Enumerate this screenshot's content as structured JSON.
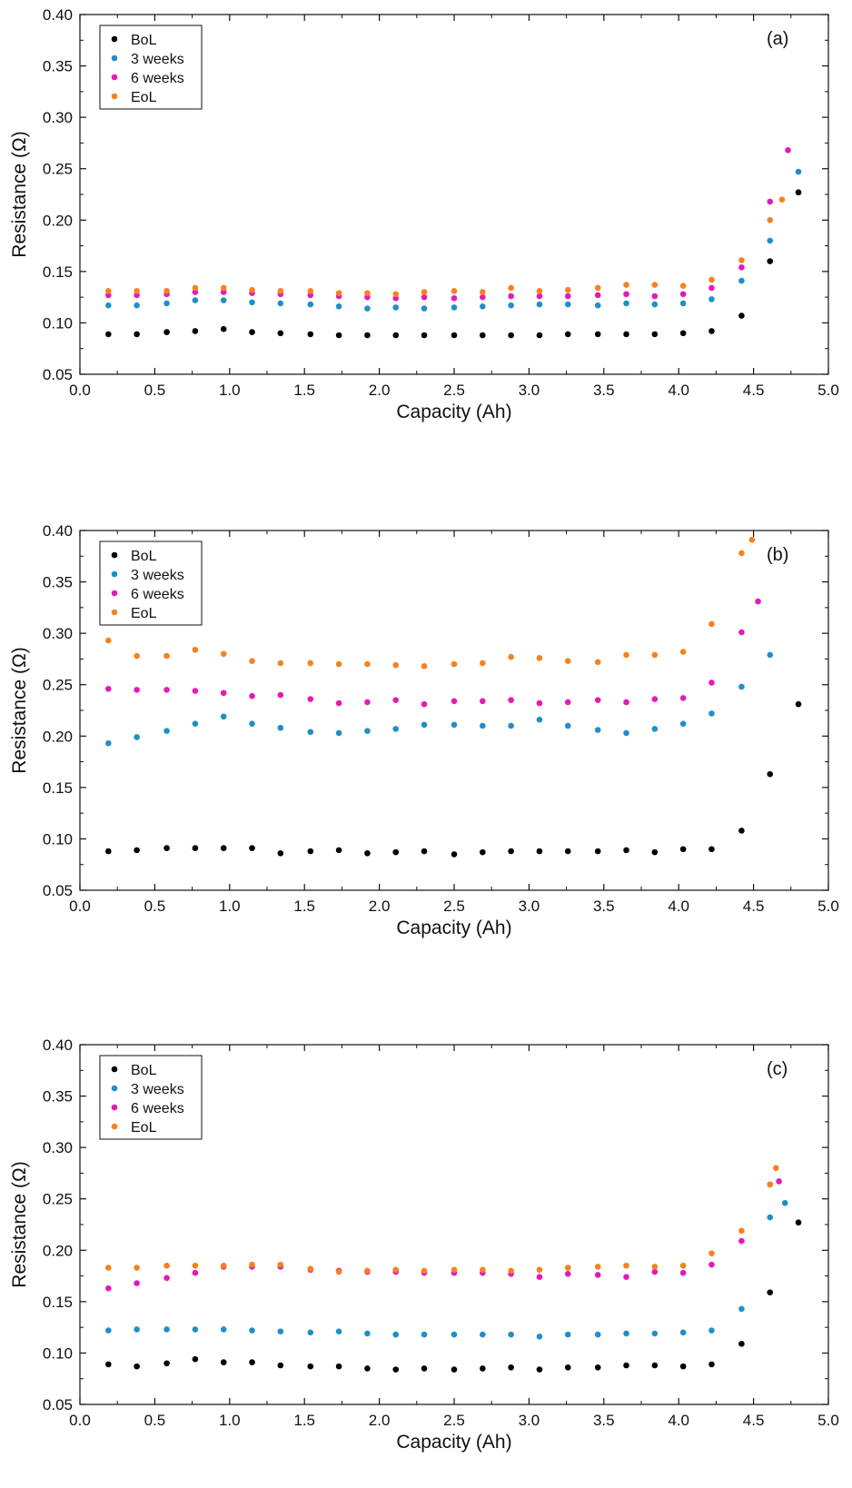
{
  "chart_data": [
    {
      "type": "scatter",
      "panel_label": "(a)",
      "xlabel": "Capacity (Ah)",
      "ylabel": "Resistance (Ω)",
      "xlim": [
        0,
        5
      ],
      "ylim": [
        0.05,
        0.4
      ],
      "xticks": [
        "0.0",
        "0.5",
        "1.0",
        "1.5",
        "2.0",
        "2.5",
        "3.0",
        "3.5",
        "4.0",
        "4.5",
        "5.0"
      ],
      "yticks": [
        "0.05",
        "0.10",
        "0.15",
        "0.20",
        "0.25",
        "0.30",
        "0.35",
        "0.40"
      ],
      "legend_position": "top-left",
      "grid": false,
      "series": [
        {
          "name": "BoL",
          "color": "#000000",
          "x": [
            0.19,
            0.38,
            0.58,
            0.77,
            0.96,
            1.15,
            1.34,
            1.54,
            1.73,
            1.92,
            2.11,
            2.3,
            2.5,
            2.69,
            2.88,
            3.07,
            3.26,
            3.46,
            3.65,
            3.84,
            4.03,
            4.22,
            4.42,
            4.61,
            4.8
          ],
          "y": [
            0.089,
            0.089,
            0.091,
            0.092,
            0.094,
            0.091,
            0.09,
            0.089,
            0.088,
            0.088,
            0.088,
            0.088,
            0.088,
            0.088,
            0.088,
            0.088,
            0.089,
            0.089,
            0.089,
            0.089,
            0.09,
            0.092,
            0.107,
            0.16,
            0.227
          ]
        },
        {
          "name": "3 weeks",
          "color": "#1f8fc9",
          "x": [
            0.19,
            0.38,
            0.58,
            0.77,
            0.96,
            1.15,
            1.34,
            1.54,
            1.73,
            1.92,
            2.11,
            2.3,
            2.5,
            2.69,
            2.88,
            3.07,
            3.26,
            3.46,
            3.65,
            3.84,
            4.03,
            4.22,
            4.42,
            4.61,
            4.8
          ],
          "y": [
            0.117,
            0.117,
            0.119,
            0.122,
            0.122,
            0.12,
            0.119,
            0.118,
            0.116,
            0.114,
            0.115,
            0.114,
            0.115,
            0.116,
            0.117,
            0.118,
            0.118,
            0.117,
            0.119,
            0.118,
            0.119,
            0.123,
            0.141,
            0.18,
            0.247
          ]
        },
        {
          "name": "6 weeks",
          "color": "#e619b8",
          "x": [
            0.19,
            0.38,
            0.58,
            0.77,
            0.96,
            1.15,
            1.34,
            1.54,
            1.73,
            1.92,
            2.11,
            2.3,
            2.5,
            2.69,
            2.88,
            3.07,
            3.26,
            3.46,
            3.65,
            3.84,
            4.03,
            4.22,
            4.42,
            4.61,
            4.73
          ],
          "y": [
            0.127,
            0.127,
            0.128,
            0.13,
            0.13,
            0.129,
            0.128,
            0.127,
            0.126,
            0.125,
            0.124,
            0.125,
            0.124,
            0.125,
            0.126,
            0.126,
            0.126,
            0.127,
            0.128,
            0.126,
            0.128,
            0.134,
            0.154,
            0.218,
            0.268
          ]
        },
        {
          "name": "EoL",
          "color": "#f5821f",
          "x": [
            0.19,
            0.38,
            0.58,
            0.77,
            0.96,
            1.15,
            1.34,
            1.54,
            1.73,
            1.92,
            2.11,
            2.3,
            2.5,
            2.69,
            2.88,
            3.07,
            3.26,
            3.46,
            3.65,
            3.84,
            4.03,
            4.22,
            4.42,
            4.61,
            4.69
          ],
          "y": [
            0.131,
            0.131,
            0.131,
            0.134,
            0.134,
            0.132,
            0.131,
            0.131,
            0.129,
            0.129,
            0.128,
            0.13,
            0.131,
            0.13,
            0.134,
            0.131,
            0.132,
            0.134,
            0.137,
            0.137,
            0.136,
            0.142,
            0.161,
            0.2,
            0.22
          ]
        }
      ]
    },
    {
      "type": "scatter",
      "panel_label": "(b)",
      "xlabel": "Capacity (Ah)",
      "ylabel": "Resistance (Ω)",
      "xlim": [
        0,
        5
      ],
      "ylim": [
        0.05,
        0.4
      ],
      "xticks": [
        "0.0",
        "0.5",
        "1.0",
        "1.5",
        "2.0",
        "2.5",
        "3.0",
        "3.5",
        "4.0",
        "4.5",
        "5.0"
      ],
      "yticks": [
        "0.05",
        "0.10",
        "0.15",
        "0.20",
        "0.25",
        "0.30",
        "0.35",
        "0.40"
      ],
      "legend_position": "top-left",
      "grid": false,
      "series": [
        {
          "name": "BoL",
          "color": "#000000",
          "x": [
            0.19,
            0.38,
            0.58,
            0.77,
            0.96,
            1.15,
            1.34,
            1.54,
            1.73,
            1.92,
            2.11,
            2.3,
            2.5,
            2.69,
            2.88,
            3.07,
            3.26,
            3.46,
            3.65,
            3.84,
            4.03,
            4.22,
            4.42,
            4.61,
            4.8
          ],
          "y": [
            0.088,
            0.089,
            0.091,
            0.091,
            0.091,
            0.091,
            0.086,
            0.088,
            0.089,
            0.086,
            0.087,
            0.088,
            0.085,
            0.087,
            0.088,
            0.088,
            0.088,
            0.088,
            0.089,
            0.087,
            0.09,
            0.09,
            0.108,
            0.163,
            0.231
          ]
        },
        {
          "name": "3 weeks",
          "color": "#1f8fc9",
          "x": [
            0.19,
            0.38,
            0.58,
            0.77,
            0.96,
            1.15,
            1.34,
            1.54,
            1.73,
            1.92,
            2.11,
            2.3,
            2.5,
            2.69,
            2.88,
            3.07,
            3.26,
            3.46,
            3.65,
            3.84,
            4.03,
            4.22,
            4.42,
            4.61
          ],
          "y": [
            0.193,
            0.199,
            0.205,
            0.212,
            0.219,
            0.212,
            0.208,
            0.204,
            0.203,
            0.205,
            0.207,
            0.211,
            0.211,
            0.21,
            0.21,
            0.216,
            0.21,
            0.206,
            0.203,
            0.207,
            0.212,
            0.222,
            0.248,
            0.279
          ]
        },
        {
          "name": "6 weeks",
          "color": "#e619b8",
          "x": [
            0.19,
            0.38,
            0.58,
            0.77,
            0.96,
            1.15,
            1.34,
            1.54,
            1.73,
            1.92,
            2.11,
            2.3,
            2.5,
            2.69,
            2.88,
            3.07,
            3.26,
            3.46,
            3.65,
            3.84,
            4.03,
            4.22,
            4.42,
            4.53
          ],
          "y": [
            0.246,
            0.245,
            0.245,
            0.244,
            0.242,
            0.239,
            0.24,
            0.236,
            0.232,
            0.233,
            0.235,
            0.231,
            0.234,
            0.234,
            0.235,
            0.232,
            0.233,
            0.235,
            0.233,
            0.236,
            0.237,
            0.252,
            0.301,
            0.331
          ]
        },
        {
          "name": "EoL",
          "color": "#f5821f",
          "x": [
            0.19,
            0.38,
            0.58,
            0.77,
            0.96,
            1.15,
            1.34,
            1.54,
            1.73,
            1.92,
            2.11,
            2.3,
            2.5,
            2.69,
            2.88,
            3.07,
            3.26,
            3.46,
            3.65,
            3.84,
            4.03,
            4.22,
            4.42,
            4.49
          ],
          "y": [
            0.293,
            0.278,
            0.278,
            0.284,
            0.28,
            0.273,
            0.271,
            0.271,
            0.27,
            0.27,
            0.269,
            0.268,
            0.27,
            0.271,
            0.277,
            0.276,
            0.273,
            0.272,
            0.279,
            0.279,
            0.282,
            0.309,
            0.378,
            0.391
          ]
        }
      ]
    },
    {
      "type": "scatter",
      "panel_label": "(c)",
      "xlabel": "Capacity (Ah)",
      "ylabel": "Resistance (Ω)",
      "xlim": [
        0,
        5
      ],
      "ylim": [
        0.05,
        0.4
      ],
      "xticks": [
        "0.0",
        "0.5",
        "1.0",
        "1.5",
        "2.0",
        "2.5",
        "3.0",
        "3.5",
        "4.0",
        "4.5",
        "5.0"
      ],
      "yticks": [
        "0.05",
        "0.10",
        "0.15",
        "0.20",
        "0.25",
        "0.30",
        "0.35",
        "0.40"
      ],
      "legend_position": "top-left",
      "grid": false,
      "series": [
        {
          "name": "BoL",
          "color": "#000000",
          "x": [
            0.19,
            0.38,
            0.58,
            0.77,
            0.96,
            1.15,
            1.34,
            1.54,
            1.73,
            1.92,
            2.11,
            2.3,
            2.5,
            2.69,
            2.88,
            3.07,
            3.26,
            3.46,
            3.65,
            3.84,
            4.03,
            4.22,
            4.42,
            4.61,
            4.8
          ],
          "y": [
            0.089,
            0.087,
            0.09,
            0.094,
            0.091,
            0.091,
            0.088,
            0.087,
            0.087,
            0.085,
            0.084,
            0.085,
            0.084,
            0.085,
            0.086,
            0.084,
            0.086,
            0.086,
            0.088,
            0.088,
            0.087,
            0.089,
            0.109,
            0.159,
            0.227
          ]
        },
        {
          "name": "3 weeks",
          "color": "#1f8fc9",
          "x": [
            0.19,
            0.38,
            0.58,
            0.77,
            0.96,
            1.15,
            1.34,
            1.54,
            1.73,
            1.92,
            2.11,
            2.3,
            2.5,
            2.69,
            2.88,
            3.07,
            3.26,
            3.46,
            3.65,
            3.84,
            4.03,
            4.22,
            4.42,
            4.61,
            4.71
          ],
          "y": [
            0.122,
            0.123,
            0.123,
            0.123,
            0.123,
            0.122,
            0.121,
            0.12,
            0.121,
            0.119,
            0.118,
            0.118,
            0.118,
            0.118,
            0.118,
            0.116,
            0.118,
            0.118,
            0.119,
            0.119,
            0.12,
            0.122,
            0.143,
            0.232,
            0.246
          ]
        },
        {
          "name": "6 weeks",
          "color": "#e619b8",
          "x": [
            0.19,
            0.38,
            0.58,
            0.77,
            0.96,
            1.15,
            1.34,
            1.54,
            1.73,
            1.92,
            2.11,
            2.3,
            2.5,
            2.69,
            2.88,
            3.07,
            3.26,
            3.46,
            3.65,
            3.84,
            4.03,
            4.22,
            4.42,
            4.61,
            4.67
          ],
          "y": [
            0.163,
            0.168,
            0.173,
            0.178,
            0.184,
            0.184,
            0.184,
            0.181,
            0.18,
            0.179,
            0.179,
            0.178,
            0.178,
            0.178,
            0.177,
            0.174,
            0.177,
            0.176,
            0.174,
            0.179,
            0.178,
            0.186,
            0.209,
            0.264,
            0.267
          ]
        },
        {
          "name": "EoL",
          "color": "#f5821f",
          "x": [
            0.19,
            0.38,
            0.58,
            0.77,
            0.96,
            1.15,
            1.34,
            1.54,
            1.73,
            1.92,
            2.11,
            2.3,
            2.5,
            2.69,
            2.88,
            3.07,
            3.26,
            3.46,
            3.65,
            3.84,
            4.03,
            4.22,
            4.42,
            4.61,
            4.65
          ],
          "y": [
            0.183,
            0.183,
            0.185,
            0.185,
            0.185,
            0.186,
            0.186,
            0.182,
            0.179,
            0.18,
            0.181,
            0.18,
            0.181,
            0.181,
            0.18,
            0.181,
            0.183,
            0.184,
            0.185,
            0.184,
            0.185,
            0.197,
            0.219,
            0.264,
            0.28
          ]
        }
      ]
    }
  ]
}
